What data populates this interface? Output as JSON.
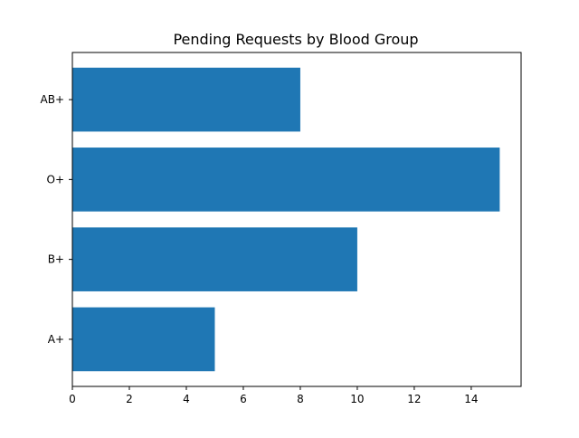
{
  "chart_data": {
    "type": "bar",
    "orientation": "horizontal",
    "title": "Pending Requests by Blood Group",
    "xlabel": "",
    "ylabel": "",
    "categories": [
      "A+",
      "B+",
      "O+",
      "AB+"
    ],
    "values": [
      5,
      10,
      15,
      8
    ],
    "xlim": [
      0,
      15.75
    ],
    "xticks": [
      0,
      2,
      4,
      6,
      8,
      10,
      12,
      14
    ],
    "grid": false,
    "legend": "none",
    "colors": {
      "bar": "#1f77b4",
      "axis": "#000000",
      "background": "#ffffff"
    }
  }
}
